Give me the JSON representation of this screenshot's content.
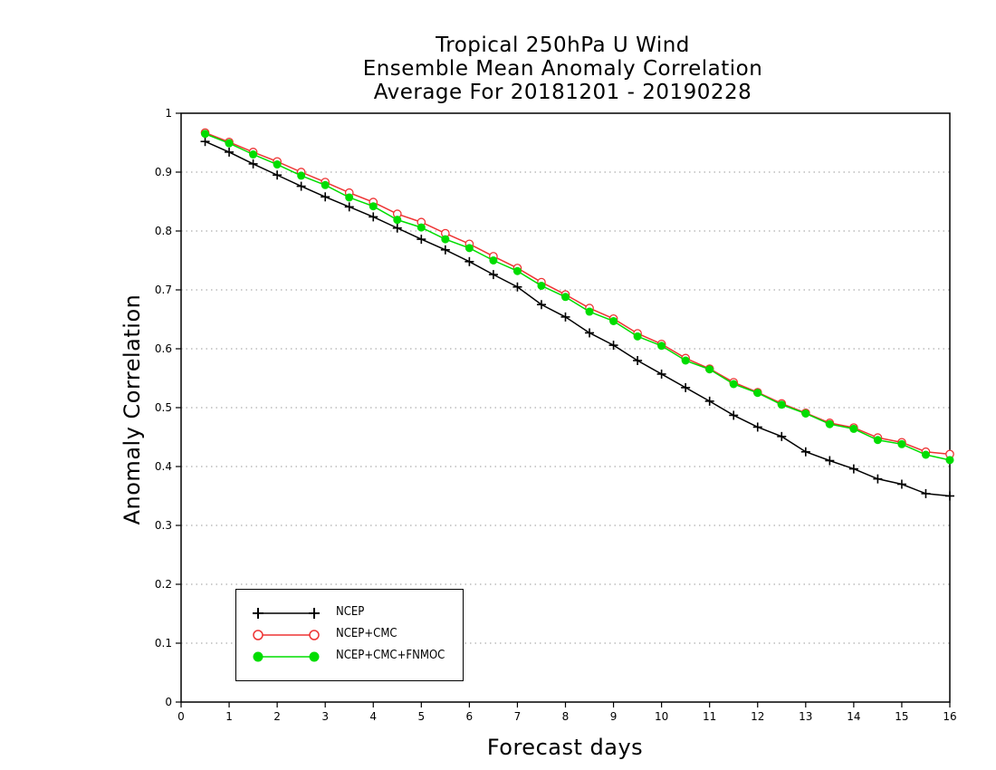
{
  "chart_data": {
    "type": "line",
    "title": [
      "Tropical 250hPa U Wind",
      "Ensemble Mean Anomaly Correlation",
      "Average For 20181201 - 20190228"
    ],
    "xlabel": "Forecast days",
    "ylabel": "Anomaly Correlation",
    "xlim": [
      0,
      16
    ],
    "ylim": [
      0,
      1
    ],
    "x_ticks": [
      "0",
      "1",
      "2",
      "3",
      "4",
      "5",
      "6",
      "7",
      "8",
      "9",
      "10",
      "11",
      "12",
      "13",
      "14",
      "15",
      "16"
    ],
    "y_ticks": [
      "0",
      "0.1",
      "0.2",
      "0.3",
      "0.4",
      "0.5",
      "0.6",
      "0.7",
      "0.8",
      "0.9",
      "1"
    ],
    "grid": "horizontal dotted",
    "legend_position": "bottom-left",
    "x": [
      0.5,
      1,
      1.5,
      2,
      2.5,
      3,
      3.5,
      4,
      4.5,
      5,
      5.5,
      6,
      6.5,
      7,
      7.5,
      8,
      8.5,
      9,
      9.5,
      10,
      10.5,
      11,
      11.5,
      12,
      12.5,
      13,
      13.5,
      14,
      14.5,
      15,
      15.5,
      16
    ],
    "series": [
      {
        "name": "NCEP",
        "color": "#000000",
        "marker": "plus",
        "values": [
          0.952,
          0.934,
          0.914,
          0.895,
          0.876,
          0.858,
          0.841,
          0.824,
          0.805,
          0.786,
          0.768,
          0.748,
          0.726,
          0.705,
          0.675,
          0.654,
          0.627,
          0.606,
          0.58,
          0.557,
          0.534,
          0.511,
          0.487,
          0.467,
          0.451,
          0.425,
          0.41,
          0.396,
          0.379,
          0.37,
          0.354,
          0.35
        ]
      },
      {
        "name": "NCEP+CMC",
        "color": "#ee3333",
        "marker": "open-circle",
        "values": [
          0.967,
          0.951,
          0.934,
          0.918,
          0.9,
          0.883,
          0.865,
          0.849,
          0.829,
          0.815,
          0.796,
          0.778,
          0.757,
          0.737,
          0.713,
          0.692,
          0.669,
          0.651,
          0.626,
          0.608,
          0.584,
          0.566,
          0.543,
          0.526,
          0.507,
          0.491,
          0.474,
          0.466,
          0.449,
          0.441,
          0.425,
          0.421
        ]
      },
      {
        "name": "NCEP+CMC+FNMOC",
        "color": "#00dd00",
        "marker": "filled-circle",
        "values": [
          0.965,
          0.949,
          0.93,
          0.913,
          0.894,
          0.878,
          0.857,
          0.842,
          0.819,
          0.806,
          0.786,
          0.771,
          0.75,
          0.732,
          0.707,
          0.688,
          0.663,
          0.647,
          0.621,
          0.605,
          0.58,
          0.565,
          0.54,
          0.525,
          0.505,
          0.49,
          0.472,
          0.464,
          0.445,
          0.438,
          0.42,
          0.411
        ]
      }
    ]
  }
}
